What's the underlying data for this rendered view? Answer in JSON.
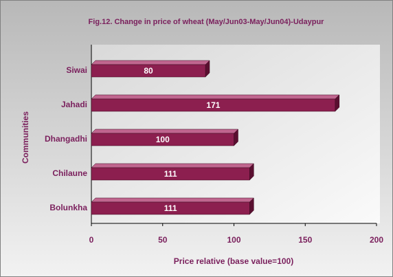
{
  "chart_data": {
    "type": "bar",
    "orientation": "horizontal",
    "title": "Fig.12. Change in price of wheat (May/Jun03-May/Jun04)-Udaypur",
    "categories": [
      "Siwai",
      "Jahadi",
      "Dhangadhi",
      "Chilaune",
      "Bolunkha"
    ],
    "values": [
      80,
      171,
      100,
      111,
      111
    ],
    "color": "#8c1f4f",
    "xlabel": "Price relative (base value=100)",
    "ylabel": "Communities",
    "xlim": [
      0,
      200
    ],
    "xticks": [
      0,
      50,
      100,
      150,
      200
    ]
  }
}
